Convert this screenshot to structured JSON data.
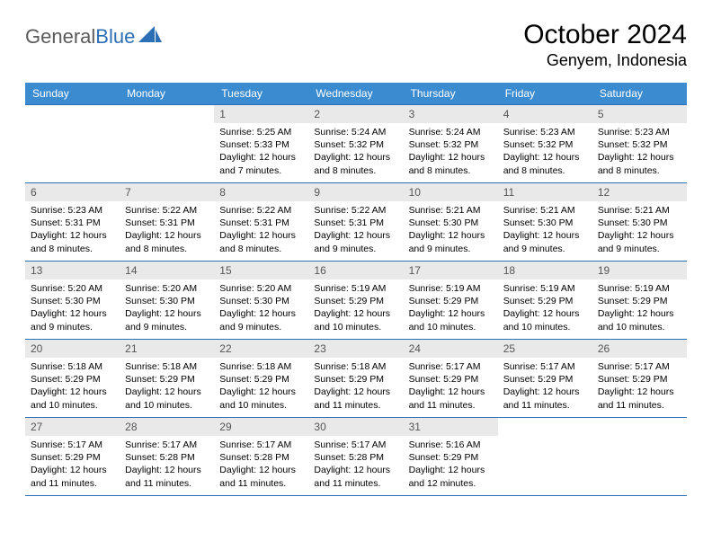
{
  "brand": {
    "part1": "General",
    "part2": "Blue"
  },
  "header": {
    "title": "October 2024",
    "location": "Genyem, Indonesia"
  },
  "style": {
    "header_bg": "#3b8bd0",
    "header_text": "#ffffff",
    "daynum_bg": "#e9e9e9",
    "daynum_text": "#555555",
    "rule_color": "#2c6fb5",
    "body_text": "#000000",
    "brand_gray": "#5a5a5a",
    "brand_blue": "#2c6fb5",
    "title_fontsize": 30,
    "location_fontsize": 18,
    "dayhead_fontsize": 12,
    "cell_fontsize": 10.5
  },
  "day_headers": [
    "Sunday",
    "Monday",
    "Tuesday",
    "Wednesday",
    "Thursday",
    "Friday",
    "Saturday"
  ],
  "weeks": [
    [
      null,
      null,
      {
        "n": "1",
        "sr": "Sunrise: 5:25 AM",
        "ss": "Sunset: 5:33 PM",
        "dl": "Daylight: 12 hours and 7 minutes."
      },
      {
        "n": "2",
        "sr": "Sunrise: 5:24 AM",
        "ss": "Sunset: 5:32 PM",
        "dl": "Daylight: 12 hours and 8 minutes."
      },
      {
        "n": "3",
        "sr": "Sunrise: 5:24 AM",
        "ss": "Sunset: 5:32 PM",
        "dl": "Daylight: 12 hours and 8 minutes."
      },
      {
        "n": "4",
        "sr": "Sunrise: 5:23 AM",
        "ss": "Sunset: 5:32 PM",
        "dl": "Daylight: 12 hours and 8 minutes."
      },
      {
        "n": "5",
        "sr": "Sunrise: 5:23 AM",
        "ss": "Sunset: 5:32 PM",
        "dl": "Daylight: 12 hours and 8 minutes."
      }
    ],
    [
      {
        "n": "6",
        "sr": "Sunrise: 5:23 AM",
        "ss": "Sunset: 5:31 PM",
        "dl": "Daylight: 12 hours and 8 minutes."
      },
      {
        "n": "7",
        "sr": "Sunrise: 5:22 AM",
        "ss": "Sunset: 5:31 PM",
        "dl": "Daylight: 12 hours and 8 minutes."
      },
      {
        "n": "8",
        "sr": "Sunrise: 5:22 AM",
        "ss": "Sunset: 5:31 PM",
        "dl": "Daylight: 12 hours and 8 minutes."
      },
      {
        "n": "9",
        "sr": "Sunrise: 5:22 AM",
        "ss": "Sunset: 5:31 PM",
        "dl": "Daylight: 12 hours and 9 minutes."
      },
      {
        "n": "10",
        "sr": "Sunrise: 5:21 AM",
        "ss": "Sunset: 5:30 PM",
        "dl": "Daylight: 12 hours and 9 minutes."
      },
      {
        "n": "11",
        "sr": "Sunrise: 5:21 AM",
        "ss": "Sunset: 5:30 PM",
        "dl": "Daylight: 12 hours and 9 minutes."
      },
      {
        "n": "12",
        "sr": "Sunrise: 5:21 AM",
        "ss": "Sunset: 5:30 PM",
        "dl": "Daylight: 12 hours and 9 minutes."
      }
    ],
    [
      {
        "n": "13",
        "sr": "Sunrise: 5:20 AM",
        "ss": "Sunset: 5:30 PM",
        "dl": "Daylight: 12 hours and 9 minutes."
      },
      {
        "n": "14",
        "sr": "Sunrise: 5:20 AM",
        "ss": "Sunset: 5:30 PM",
        "dl": "Daylight: 12 hours and 9 minutes."
      },
      {
        "n": "15",
        "sr": "Sunrise: 5:20 AM",
        "ss": "Sunset: 5:30 PM",
        "dl": "Daylight: 12 hours and 9 minutes."
      },
      {
        "n": "16",
        "sr": "Sunrise: 5:19 AM",
        "ss": "Sunset: 5:29 PM",
        "dl": "Daylight: 12 hours and 10 minutes."
      },
      {
        "n": "17",
        "sr": "Sunrise: 5:19 AM",
        "ss": "Sunset: 5:29 PM",
        "dl": "Daylight: 12 hours and 10 minutes."
      },
      {
        "n": "18",
        "sr": "Sunrise: 5:19 AM",
        "ss": "Sunset: 5:29 PM",
        "dl": "Daylight: 12 hours and 10 minutes."
      },
      {
        "n": "19",
        "sr": "Sunrise: 5:19 AM",
        "ss": "Sunset: 5:29 PM",
        "dl": "Daylight: 12 hours and 10 minutes."
      }
    ],
    [
      {
        "n": "20",
        "sr": "Sunrise: 5:18 AM",
        "ss": "Sunset: 5:29 PM",
        "dl": "Daylight: 12 hours and 10 minutes."
      },
      {
        "n": "21",
        "sr": "Sunrise: 5:18 AM",
        "ss": "Sunset: 5:29 PM",
        "dl": "Daylight: 12 hours and 10 minutes."
      },
      {
        "n": "22",
        "sr": "Sunrise: 5:18 AM",
        "ss": "Sunset: 5:29 PM",
        "dl": "Daylight: 12 hours and 10 minutes."
      },
      {
        "n": "23",
        "sr": "Sunrise: 5:18 AM",
        "ss": "Sunset: 5:29 PM",
        "dl": "Daylight: 12 hours and 11 minutes."
      },
      {
        "n": "24",
        "sr": "Sunrise: 5:17 AM",
        "ss": "Sunset: 5:29 PM",
        "dl": "Daylight: 12 hours and 11 minutes."
      },
      {
        "n": "25",
        "sr": "Sunrise: 5:17 AM",
        "ss": "Sunset: 5:29 PM",
        "dl": "Daylight: 12 hours and 11 minutes."
      },
      {
        "n": "26",
        "sr": "Sunrise: 5:17 AM",
        "ss": "Sunset: 5:29 PM",
        "dl": "Daylight: 12 hours and 11 minutes."
      }
    ],
    [
      {
        "n": "27",
        "sr": "Sunrise: 5:17 AM",
        "ss": "Sunset: 5:29 PM",
        "dl": "Daylight: 12 hours and 11 minutes."
      },
      {
        "n": "28",
        "sr": "Sunrise: 5:17 AM",
        "ss": "Sunset: 5:28 PM",
        "dl": "Daylight: 12 hours and 11 minutes."
      },
      {
        "n": "29",
        "sr": "Sunrise: 5:17 AM",
        "ss": "Sunset: 5:28 PM",
        "dl": "Daylight: 12 hours and 11 minutes."
      },
      {
        "n": "30",
        "sr": "Sunrise: 5:17 AM",
        "ss": "Sunset: 5:28 PM",
        "dl": "Daylight: 12 hours and 11 minutes."
      },
      {
        "n": "31",
        "sr": "Sunrise: 5:16 AM",
        "ss": "Sunset: 5:29 PM",
        "dl": "Daylight: 12 hours and 12 minutes."
      },
      null,
      null
    ]
  ]
}
